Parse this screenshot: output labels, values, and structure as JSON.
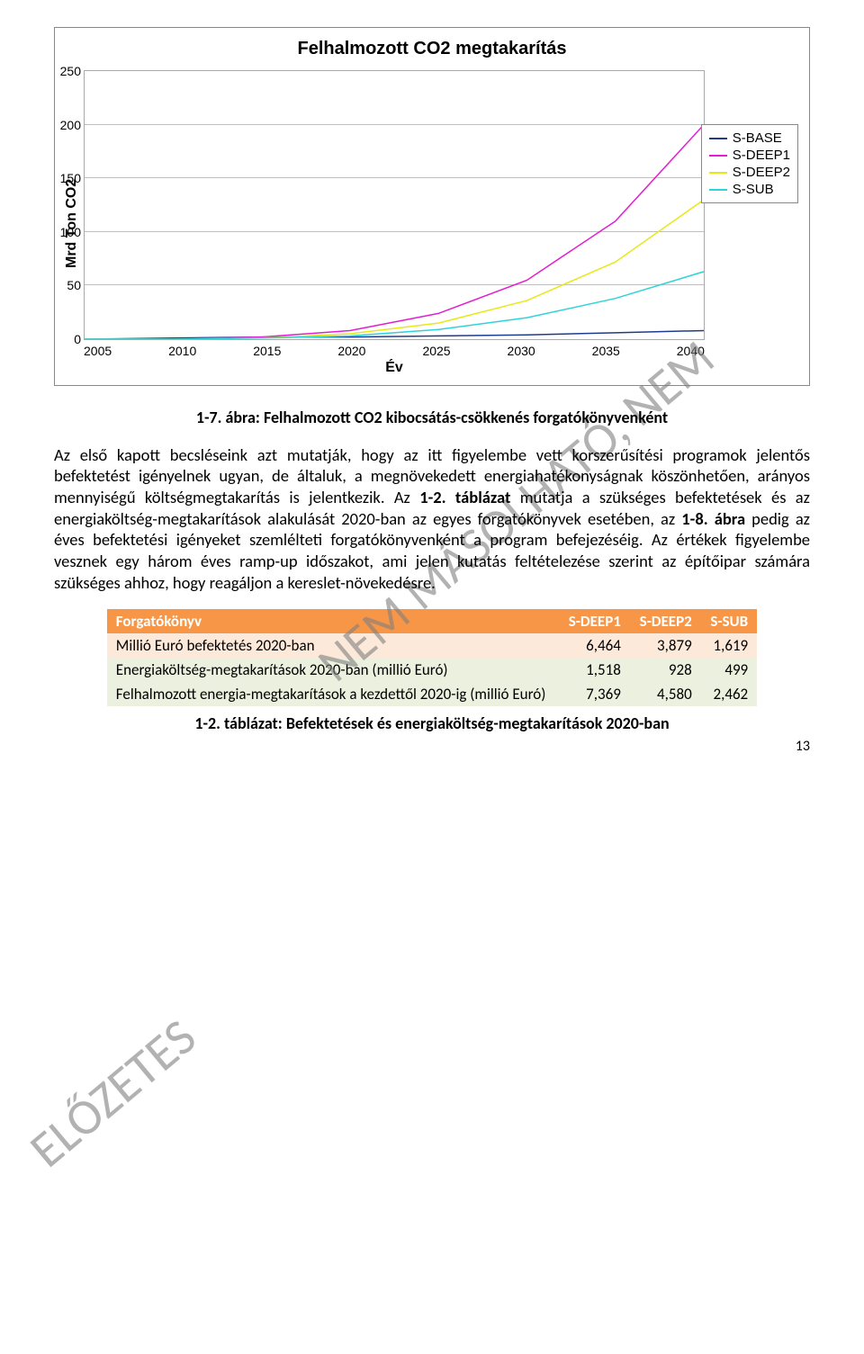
{
  "chart": {
    "type": "line",
    "title": "Felhalmozott CO2 megtakarítás",
    "ylabel": "Mrd Ton CO2",
    "xlabel": "Év",
    "title_fontsize": 20,
    "label_fontsize": 16,
    "tick_fontsize": 14,
    "background_color": "#ffffff",
    "grid_color": "#bfbfbf",
    "border_color": "#888888",
    "line_width": 1.5,
    "ylim": [
      0,
      250
    ],
    "ytick_step": 50,
    "yticks": [
      "0",
      "50",
      "100",
      "150",
      "200",
      "250"
    ],
    "xlim": [
      2005,
      2040
    ],
    "xticks": [
      "2005",
      "2010",
      "2015",
      "2020",
      "2025",
      "2030",
      "2035",
      "2040"
    ],
    "x_values": [
      2005,
      2010,
      2015,
      2020,
      2025,
      2030,
      2035,
      2040
    ],
    "series": [
      {
        "name": "S-BASE",
        "color": "#1f3b8f",
        "values": [
          0,
          1,
          2,
          2,
          3,
          4,
          6,
          8
        ]
      },
      {
        "name": "S-DEEP1",
        "color": "#e21fd0",
        "values": [
          0,
          0,
          2,
          8,
          24,
          55,
          110,
          200
        ]
      },
      {
        "name": "S-DEEP2",
        "color": "#e8e818",
        "values": [
          0,
          0,
          1,
          5,
          15,
          36,
          72,
          130
        ]
      },
      {
        "name": "S-SUB",
        "color": "#2fd3d8",
        "values": [
          0,
          0,
          1,
          3,
          9,
          20,
          38,
          63
        ]
      }
    ]
  },
  "caption1": "1-7. ábra: Felhalmozott CO2 kibocsátás-csökkenés forgatókönyvenként",
  "paragraph": {
    "t1": "Az első kapott becsléseink azt mutatják, hogy az itt figyelembe vett korszerűsítési programok jelentős befektetést igényelnek ugyan, de általuk, a megnövekedett energiahatékonyságnak köszönhetően, arányos mennyiségű költségmegtakarítás is jelentkezik. Az ",
    "b1": "1-2. táblázat",
    "t2": " mutatja a szükséges befektetések és az energiaköltség-megtakarítások alakulását 2020-ban az egyes forgatókönyvek esetében, az ",
    "b2": "1-8. ábra",
    "t3": " pedig az éves befektetési igényeket szemlélteti forgatókönyvenként a program befejezéséig. Az értékek figyelembe vesznek egy három éves ramp-up időszakot, ami jelen kutatás feltételezése szerint az építőipar számára szükséges ahhoz, hogy reagáljon a kereslet-növekedésre."
  },
  "table": {
    "header_bg": "#f79646",
    "header_fg": "#ffffff",
    "row_colors": [
      "#fde9d9",
      "#ebf1de",
      "#ebf1de"
    ],
    "columns": [
      "Forgatókönyv",
      "S-DEEP1",
      "S-DEEP2",
      "S-SUB"
    ],
    "rows": [
      {
        "label": "Millió Euró befektetés 2020-ban",
        "vals": [
          "6,464",
          "3,879",
          "1,619"
        ]
      },
      {
        "label": "Energiaköltség-megtakarítások 2020-ban (millió Euró)",
        "vals": [
          "1,518",
          "928",
          "499"
        ]
      },
      {
        "label": "Felhalmozott energia-megtakarítások a kezdettől 2020-ig (millió Euró)",
        "vals": [
          "7,369",
          "4,580",
          "2,462"
        ]
      }
    ]
  },
  "caption2": "1-2. táblázat: Befektetések és energiaköltség-megtakarítások 2020-ban",
  "watermark1": "NEM MÁSOLHATÓ, NEM",
  "watermark2": "ELŐZETES",
  "page_number": "13"
}
